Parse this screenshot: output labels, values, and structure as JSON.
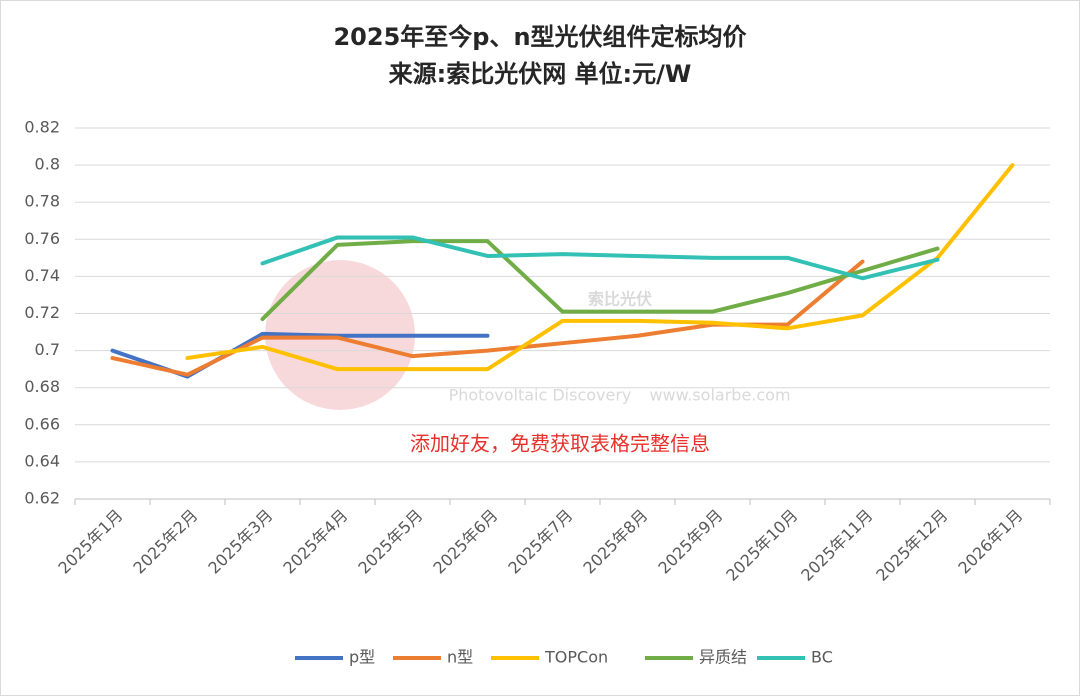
{
  "chart_data": {
    "type": "line",
    "title": "2025年至今p、n型光伏组件定标均价",
    "subtitle": "来源:索比光伏网 单位:元/W",
    "annotation": "添加好友，免费获取表格完整信息",
    "watermark": [
      "索比光伏",
      "Photovoltaic Discovery",
      "www.solarbe.com"
    ],
    "categories": [
      "2025年1月",
      "2025年2月",
      "2025年3月",
      "2025年4月",
      "2025年5月",
      "2025年6月",
      "2025年7月",
      "2025年8月",
      "2025年9月",
      "2025年10月",
      "2025年11月",
      "2025年12月",
      "2026年1月"
    ],
    "series": [
      {
        "name": "p型",
        "color": "#4472c4",
        "values": [
          0.7,
          0.686,
          0.709,
          0.708,
          0.708,
          0.708,
          null,
          null,
          null,
          null,
          null,
          null,
          null
        ]
      },
      {
        "name": "n型",
        "color": "#ed7d31",
        "values": [
          0.696,
          0.687,
          0.707,
          0.707,
          0.697,
          0.7,
          0.704,
          0.708,
          0.714,
          0.714,
          0.748,
          null,
          null
        ]
      },
      {
        "name": "TOPCon",
        "color": "#ffc000",
        "values": [
          null,
          0.696,
          0.702,
          0.69,
          0.69,
          0.69,
          0.716,
          0.716,
          0.715,
          0.712,
          0.719,
          0.75,
          0.8
        ]
      },
      {
        "name": "异质结",
        "color": "#70ad47",
        "values": [
          null,
          null,
          0.717,
          0.757,
          0.759,
          0.759,
          0.721,
          0.721,
          0.721,
          0.731,
          0.743,
          0.755,
          null
        ]
      },
      {
        "name": "BC",
        "color": "#33c1b5",
        "values": [
          null,
          null,
          0.747,
          0.761,
          0.761,
          0.751,
          0.752,
          0.751,
          0.75,
          0.75,
          0.739,
          0.749,
          null
        ]
      }
    ],
    "ylim": [
      0.62,
      0.82
    ],
    "yticks": [
      0.62,
      0.64,
      0.66,
      0.68,
      0.7,
      0.72,
      0.74,
      0.76,
      0.78,
      0.8,
      0.82
    ],
    "grid": true,
    "legend": "bottom"
  }
}
